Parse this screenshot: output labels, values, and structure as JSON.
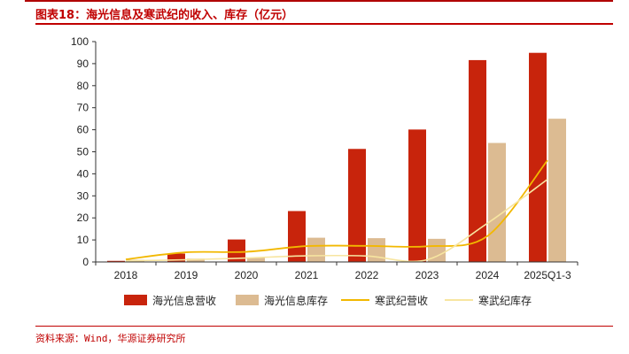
{
  "header": {
    "figure_title": "图表18：海光信息及寒武纪的收入、库存（亿元）"
  },
  "footer": {
    "source": "资料来源：Wind，华源证券研究所"
  },
  "colors": {
    "hygon_revenue": "#c8240c",
    "hygon_inventory": "#dcbb92",
    "cambricon_revenue": "#f2b800",
    "cambricon_inventory": "#f7e5a0",
    "accent": "#c00000"
  },
  "chart_data": {
    "type": "bar",
    "title": "",
    "xlabel": "",
    "ylabel": "",
    "ylim": [
      0,
      100
    ],
    "yticks": [
      0,
      10,
      20,
      30,
      40,
      50,
      60,
      70,
      80,
      90,
      100
    ],
    "categories": [
      "2018",
      "2019",
      "2020",
      "2021",
      "2022",
      "2023",
      "2024",
      "2025Q1-3"
    ],
    "series": [
      {
        "name": "海光信息营收",
        "kind": "bar",
        "values": [
          0.5,
          3.8,
          10.2,
          23.1,
          51.3,
          60.1,
          91.6,
          94.9
        ]
      },
      {
        "name": "海光信息库存",
        "kind": "bar",
        "values": [
          1.0,
          1.5,
          1.8,
          11.0,
          10.8,
          10.5,
          54.0,
          65.0
        ]
      },
      {
        "name": "寒武纪营收",
        "kind": "line",
        "values": [
          1.2,
          4.4,
          4.6,
          7.2,
          7.3,
          7.1,
          11.7,
          46.1
        ]
      },
      {
        "name": "寒武纪库存",
        "kind": "line",
        "values": [
          0.5,
          1.0,
          1.8,
          2.8,
          2.7,
          1.0,
          17.5,
          37.5
        ]
      }
    ],
    "legend_position": "bottom"
  }
}
